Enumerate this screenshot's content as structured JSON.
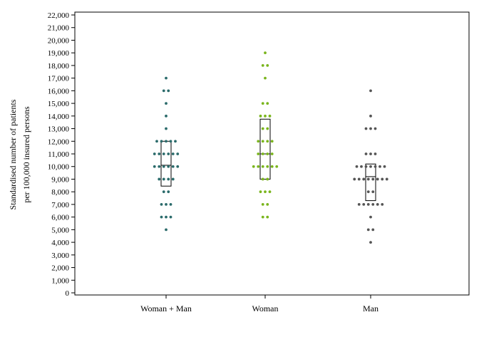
{
  "chart_data": {
    "type": "scatter",
    "subtype": "dot-strip plot with median and interquartile box",
    "ylabel": [
      "Standardised number of patients",
      "per 100,000 insured persons"
    ],
    "ylim": [
      0,
      22000
    ],
    "yticks": [
      0,
      1000,
      2000,
      3000,
      4000,
      5000,
      6000,
      7000,
      8000,
      9000,
      10000,
      11000,
      12000,
      13000,
      14000,
      15000,
      16000,
      17000,
      18000,
      19000,
      20000,
      21000,
      22000
    ],
    "ytick_labels": [
      "0",
      "1,000",
      "2,000",
      "3,000",
      "4,000",
      "5,000",
      "6,000",
      "7,000",
      "8,000",
      "9,000",
      "10,000",
      "11,000",
      "12,000",
      "13,000",
      "14,000",
      "15,000",
      "16,000",
      "17,000",
      "18,000",
      "19,000",
      "20,000",
      "21,000",
      "22,000"
    ],
    "categories": [
      "Woman + Man",
      "Woman",
      "Man"
    ],
    "grid": false,
    "legend": "none",
    "series": [
      {
        "category": "Woman + Man",
        "color": "#2b6b6b",
        "points": [
          17000,
          16000,
          16000,
          15000,
          14000,
          13000,
          12000,
          12000,
          12000,
          12000,
          12000,
          11000,
          11000,
          11000,
          11000,
          11000,
          11000,
          10000,
          10000,
          10000,
          10000,
          10000,
          10000,
          9000,
          9000,
          9000,
          9000,
          8000,
          8000,
          7000,
          7000,
          7000,
          6000,
          6000,
          6000,
          5000
        ],
        "box": {
          "q1": 8450,
          "median": 10100,
          "q3": 12000
        }
      },
      {
        "category": "Woman",
        "color": "#7ab51d",
        "points": [
          19000,
          18000,
          18000,
          17000,
          15000,
          15000,
          14000,
          14000,
          14000,
          13000,
          13000,
          12000,
          12000,
          12000,
          12000,
          11000,
          11000,
          11000,
          11000,
          10000,
          10000,
          10000,
          10000,
          10000,
          10000,
          9000,
          9000,
          8000,
          8000,
          8000,
          7000,
          7000,
          6000,
          6000
        ],
        "box": {
          "q1": 9000,
          "median": 11000,
          "q3": 13750
        }
      },
      {
        "category": "Man",
        "color": "#555555",
        "points": [
          16000,
          14000,
          13000,
          13000,
          13000,
          11000,
          11000,
          11000,
          10000,
          10000,
          10000,
          10000,
          10000,
          10000,
          10000,
          9000,
          9000,
          9000,
          9000,
          9000,
          9000,
          9000,
          9000,
          8000,
          8000,
          7000,
          7000,
          7000,
          7000,
          7000,
          7000,
          6000,
          5000,
          5000,
          4000
        ],
        "box": {
          "q1": 7300,
          "median": 9200,
          "q3": 10200
        }
      }
    ]
  }
}
